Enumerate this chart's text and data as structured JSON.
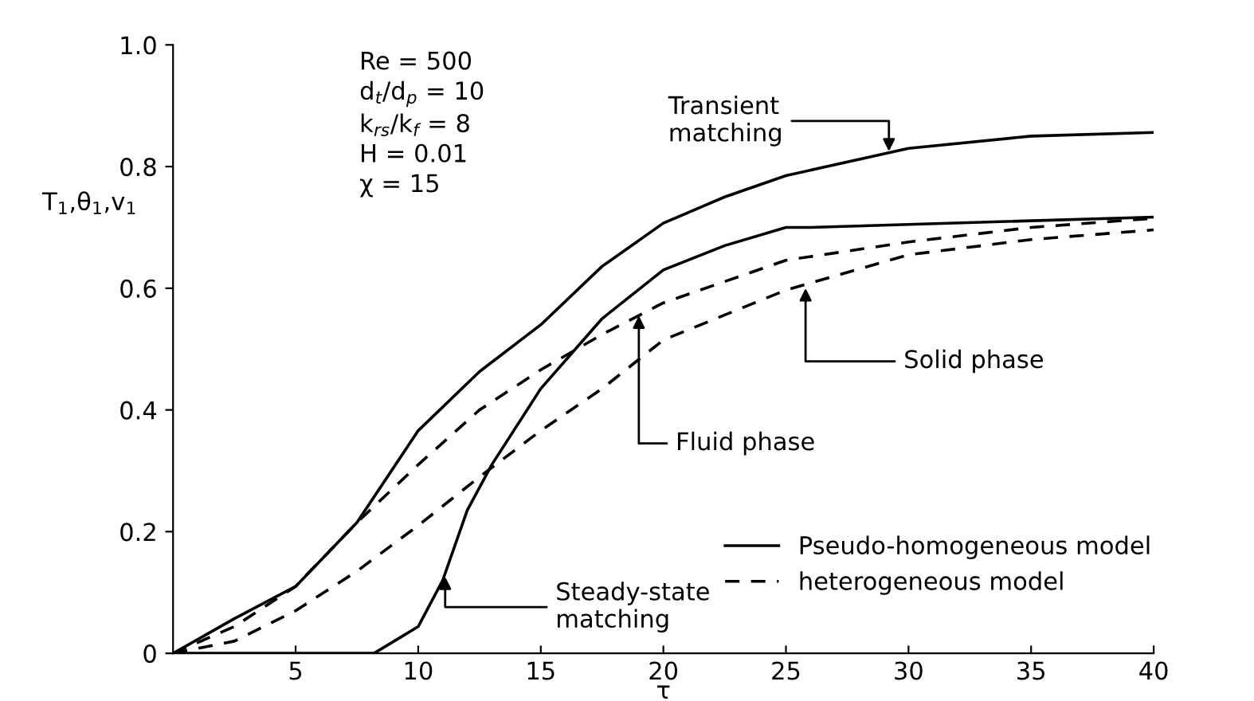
{
  "chart_data": {
    "type": "line",
    "xlabel": "τ",
    "ylabel": "T$_{1}$,θ$_{1}$,v$_{1}$",
    "xlim": [
      0,
      40
    ],
    "ylim": [
      0,
      1.0
    ],
    "xticks": [
      5,
      10,
      15,
      20,
      25,
      30,
      35,
      40
    ],
    "yticks": [
      0,
      0.2,
      0.4,
      0.6,
      0.8,
      {
        "value": 1.0,
        "label": "1.0"
      }
    ],
    "grid": false,
    "legend": "bottom right",
    "marker": "none",
    "series": [
      {
        "name": "Pseudo-homogeneous model",
        "color": "#000000",
        "line_style": "solid",
        "x": [
          0,
          2.5,
          5,
          7.5,
          10,
          12.5,
          15,
          17.5,
          20,
          22.5,
          25,
          30,
          35,
          40
        ],
        "values": [
          0,
          0.057,
          0.11,
          0.215,
          0.366,
          0.463,
          0.54,
          0.636,
          0.707,
          0.75,
          0.785,
          0.83,
          0.85,
          0.856
        ]
      },
      {
        "color": "#000000",
        "line_style": "solid",
        "x": [
          0,
          8.2,
          10,
          11,
          12,
          13,
          15,
          17.5,
          20,
          22.5,
          25,
          26,
          40
        ],
        "values": [
          0,
          0,
          0.044,
          0.12,
          0.235,
          0.31,
          0.435,
          0.55,
          0.63,
          0.67,
          0.7,
          0.7,
          0.717
        ]
      },
      {
        "name": "heterogeneous model",
        "color": "#000000",
        "line_style": "dashed",
        "x": [
          0,
          2.5,
          5,
          7.5,
          10,
          12.5,
          15,
          17.5,
          20,
          25,
          30,
          35,
          40
        ],
        "values": [
          0,
          0.044,
          0.11,
          0.215,
          0.31,
          0.4,
          0.466,
          0.524,
          0.576,
          0.646,
          0.676,
          0.7,
          0.715
        ]
      },
      {
        "color": "#000000",
        "line_style": "dashed",
        "x": [
          0,
          2.5,
          5,
          7.5,
          10,
          12.5,
          15,
          17.5,
          20,
          25,
          30,
          35,
          40
        ],
        "values": [
          0,
          0.02,
          0.07,
          0.135,
          0.21,
          0.29,
          0.366,
          0.435,
          0.515,
          0.597,
          0.655,
          0.68,
          0.696
        ]
      }
    ],
    "annotations": [
      "Re = 500\nd$_{t}$/d$_{p}$ = 10\nk$_{rs}$/k$_{f}$ = 8\nH = 0.01\nχ = 15",
      {
        "text": "Transient\nmatching",
        "x": 29.2,
        "y": 0.825
      },
      {
        "text": "Fluid phase",
        "x": 19,
        "y": 0.555
      },
      {
        "text": "Solid phase",
        "x": 25.8,
        "y": 0.6
      },
      {
        "text": "Steady-state\nmatching",
        "x": 11.1,
        "y": 0.126
      }
    ]
  }
}
